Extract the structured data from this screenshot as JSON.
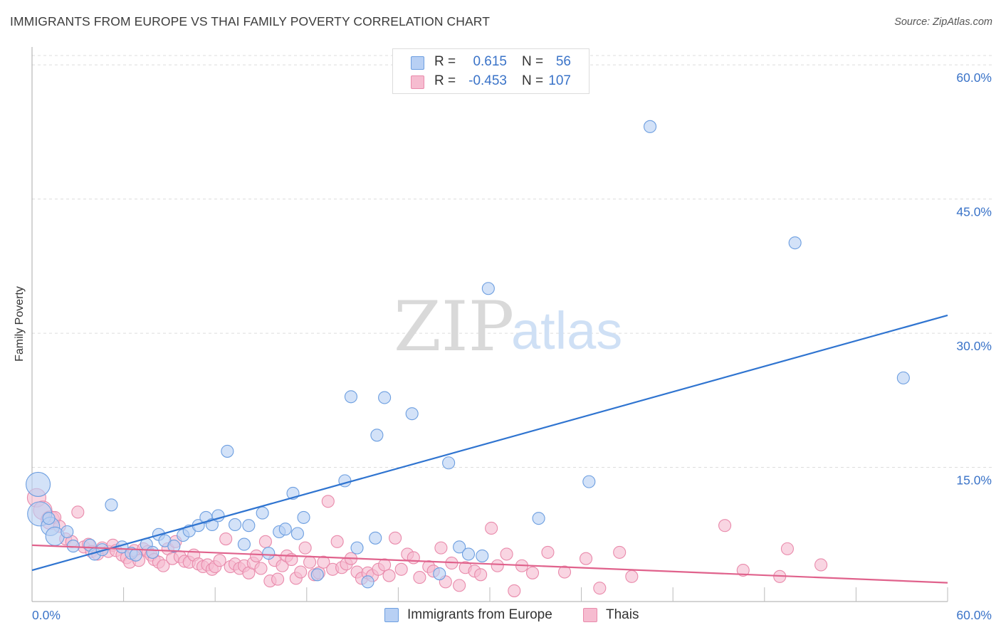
{
  "title": "IMMIGRANTS FROM EUROPE VS THAI FAMILY POVERTY CORRELATION CHART",
  "source": "Source: ZipAtlas.com",
  "watermark": {
    "zip": "ZIP",
    "atlas": "atlas"
  },
  "colors": {
    "blue_fill": "#b8d0f4",
    "blue_stroke": "#6c9ee0",
    "blue_line": "#2f74d0",
    "pink_fill": "#f6bcd0",
    "pink_stroke": "#e98aab",
    "pink_line": "#e0628c",
    "tick_label": "#3a73c8",
    "grid": "#dddddd"
  },
  "stats": [
    {
      "series": "blue",
      "r_label": "R =",
      "r_value": "0.615",
      "n_label": "N =",
      "n_value": "56"
    },
    {
      "series": "pink",
      "r_label": "R =",
      "r_value": "-0.453",
      "n_label": "N =",
      "n_value": "107"
    }
  ],
  "legend": [
    "Immigrants from Europe",
    "Thais"
  ],
  "chart_data": {
    "type": "scatter",
    "title": "IMMIGRANTS FROM EUROPE VS THAI FAMILY POVERTY CORRELATION CHART",
    "xlabel": "",
    "ylabel": "Family Poverty",
    "xlim": [
      0,
      60
    ],
    "ylim": [
      0,
      62
    ],
    "x_tick_labels": [
      "0.0%",
      "60.0%"
    ],
    "y_ticks": [
      15,
      30,
      45,
      60
    ],
    "y_tick_labels": [
      "15.0%",
      "30.0%",
      "45.0%",
      "60.0%"
    ],
    "grid": "horizontal dashed",
    "legend_position": "bottom-center",
    "series": [
      {
        "name": "Immigrants from Europe",
        "color": "#6c9ee0",
        "r": 0.615,
        "n": 56,
        "trend": [
          [
            0,
            3.5
          ],
          [
            60,
            32.0
          ]
        ],
        "points": [
          [
            0.4,
            13.1,
            3
          ],
          [
            0.5,
            9.8,
            3
          ],
          [
            1.2,
            8.4,
            2
          ],
          [
            1.5,
            7.3,
            2
          ],
          [
            2.3,
            7.8,
            1
          ],
          [
            2.7,
            6.2,
            1
          ],
          [
            3.8,
            6.3,
            1
          ],
          [
            4.1,
            5.3,
            1
          ],
          [
            4.6,
            5.8,
            1
          ],
          [
            5.2,
            10.8,
            1
          ],
          [
            5.9,
            6.1,
            1
          ],
          [
            6.5,
            5.4,
            1
          ],
          [
            6.8,
            5.2,
            1
          ],
          [
            7.5,
            6.4,
            1
          ],
          [
            7.9,
            5.5,
            1
          ],
          [
            8.3,
            7.5,
            1
          ],
          [
            8.7,
            6.8,
            1
          ],
          [
            9.3,
            6.2,
            1
          ],
          [
            9.9,
            7.4,
            1
          ],
          [
            10.3,
            7.9,
            1
          ],
          [
            10.9,
            8.5,
            1
          ],
          [
            11.4,
            9.4,
            1
          ],
          [
            11.8,
            8.6,
            1
          ],
          [
            12.2,
            9.6,
            1
          ],
          [
            12.8,
            16.8,
            1
          ],
          [
            13.3,
            8.6,
            1
          ],
          [
            13.9,
            6.4,
            1
          ],
          [
            14.2,
            8.5,
            1
          ],
          [
            15.1,
            9.9,
            1
          ],
          [
            15.5,
            5.4,
            1
          ],
          [
            16.2,
            7.8,
            1
          ],
          [
            16.6,
            8.1,
            1
          ],
          [
            17.1,
            12.1,
            1
          ],
          [
            17.4,
            7.6,
            1
          ],
          [
            17.8,
            9.4,
            1
          ],
          [
            18.7,
            3.0,
            1
          ],
          [
            20.5,
            13.5,
            1
          ],
          [
            20.9,
            22.9,
            1
          ],
          [
            21.3,
            6.0,
            1
          ],
          [
            22.0,
            2.2,
            1
          ],
          [
            22.5,
            7.1,
            1
          ],
          [
            22.6,
            18.6,
            1
          ],
          [
            23.1,
            22.8,
            1
          ],
          [
            24.9,
            21.0,
            1
          ],
          [
            26.7,
            3.1,
            1
          ],
          [
            27.3,
            15.5,
            1
          ],
          [
            28.0,
            6.1,
            1
          ],
          [
            28.6,
            5.3,
            1
          ],
          [
            29.5,
            5.1,
            1
          ],
          [
            29.9,
            35.0,
            1
          ],
          [
            33.2,
            9.3,
            1
          ],
          [
            36.5,
            13.4,
            1
          ],
          [
            40.5,
            53.1,
            1
          ],
          [
            50.0,
            40.1,
            1
          ],
          [
            57.1,
            25.0,
            1
          ],
          [
            1.1,
            9.3,
            1
          ]
        ]
      },
      {
        "name": "Thais",
        "color": "#e98aab",
        "r": -0.453,
        "n": 107,
        "trend": [
          [
            0,
            6.3
          ],
          [
            60,
            2.1
          ]
        ],
        "points": [
          [
            0.3,
            11.6,
            2
          ],
          [
            0.7,
            10.2,
            2
          ],
          [
            1.2,
            9.1,
            2
          ],
          [
            1.5,
            9.4,
            1
          ],
          [
            1.8,
            8.4,
            1
          ],
          [
            2.2,
            7.0,
            1
          ],
          [
            2.6,
            6.7,
            1
          ],
          [
            3.0,
            10.0,
            1
          ],
          [
            3.4,
            6.1,
            1
          ],
          [
            3.7,
            6.4,
            1
          ],
          [
            3.9,
            5.6,
            1
          ],
          [
            4.3,
            5.3,
            1
          ],
          [
            4.6,
            6.0,
            1
          ],
          [
            5.0,
            5.6,
            1
          ],
          [
            5.3,
            6.3,
            1
          ],
          [
            5.5,
            5.7,
            1
          ],
          [
            5.9,
            5.2,
            1
          ],
          [
            6.2,
            4.9,
            1
          ],
          [
            6.4,
            4.4,
            1
          ],
          [
            6.7,
            5.7,
            1
          ],
          [
            7.0,
            4.6,
            1
          ],
          [
            7.3,
            5.9,
            1
          ],
          [
            7.6,
            5.6,
            1
          ],
          [
            7.8,
            5.2,
            1
          ],
          [
            8.0,
            4.7,
            1
          ],
          [
            8.3,
            4.4,
            1
          ],
          [
            8.6,
            4.0,
            1
          ],
          [
            8.9,
            5.9,
            1
          ],
          [
            9.2,
            4.8,
            1
          ],
          [
            9.4,
            6.7,
            1
          ],
          [
            9.7,
            5.0,
            1
          ],
          [
            10.0,
            4.5,
            1
          ],
          [
            10.3,
            4.4,
            1
          ],
          [
            10.6,
            5.2,
            1
          ],
          [
            10.9,
            4.2,
            1
          ],
          [
            11.2,
            3.9,
            1
          ],
          [
            11.5,
            4.1,
            1
          ],
          [
            11.8,
            3.6,
            1
          ],
          [
            12.0,
            3.9,
            1
          ],
          [
            12.3,
            4.6,
            1
          ],
          [
            12.7,
            7.0,
            1
          ],
          [
            13.0,
            3.9,
            1
          ],
          [
            13.3,
            4.2,
            1
          ],
          [
            13.6,
            3.7,
            1
          ],
          [
            13.9,
            4.0,
            1
          ],
          [
            14.2,
            3.2,
            1
          ],
          [
            14.5,
            4.3,
            1
          ],
          [
            14.7,
            5.1,
            1
          ],
          [
            15.0,
            3.7,
            1
          ],
          [
            15.3,
            6.7,
            1
          ],
          [
            15.6,
            2.3,
            1
          ],
          [
            15.9,
            4.6,
            1
          ],
          [
            16.1,
            2.5,
            1
          ],
          [
            16.4,
            4.0,
            1
          ],
          [
            16.7,
            5.1,
            1
          ],
          [
            17.0,
            4.7,
            1
          ],
          [
            17.3,
            2.6,
            1
          ],
          [
            17.6,
            3.3,
            1
          ],
          [
            17.9,
            6.0,
            1
          ],
          [
            18.2,
            4.4,
            1
          ],
          [
            18.5,
            3.0,
            1
          ],
          [
            18.8,
            3.2,
            1
          ],
          [
            19.1,
            4.4,
            1
          ],
          [
            19.4,
            11.2,
            1
          ],
          [
            19.7,
            3.6,
            1
          ],
          [
            20.0,
            6.7,
            1
          ],
          [
            20.3,
            3.8,
            1
          ],
          [
            20.6,
            4.2,
            1
          ],
          [
            20.9,
            4.8,
            1
          ],
          [
            21.3,
            3.3,
            1
          ],
          [
            21.6,
            2.6,
            1
          ],
          [
            22.0,
            3.2,
            1
          ],
          [
            22.3,
            2.9,
            1
          ],
          [
            22.7,
            3.6,
            1
          ],
          [
            23.1,
            4.1,
            1
          ],
          [
            23.4,
            2.9,
            1
          ],
          [
            23.8,
            7.1,
            1
          ],
          [
            24.2,
            3.6,
            1
          ],
          [
            24.6,
            5.3,
            1
          ],
          [
            25.0,
            4.9,
            1
          ],
          [
            25.4,
            2.7,
            1
          ],
          [
            26.0,
            3.9,
            1
          ],
          [
            26.3,
            3.4,
            1
          ],
          [
            26.8,
            6.0,
            1
          ],
          [
            27.1,
            2.2,
            1
          ],
          [
            27.5,
            4.3,
            1
          ],
          [
            28.0,
            1.8,
            1
          ],
          [
            28.4,
            3.8,
            1
          ],
          [
            29.0,
            3.4,
            1
          ],
          [
            29.4,
            3.0,
            1
          ],
          [
            30.1,
            8.2,
            1
          ],
          [
            30.5,
            4.0,
            1
          ],
          [
            31.1,
            5.3,
            1
          ],
          [
            31.6,
            1.2,
            1
          ],
          [
            32.1,
            4.0,
            1
          ],
          [
            32.8,
            3.2,
            1
          ],
          [
            33.8,
            5.5,
            1
          ],
          [
            34.9,
            3.3,
            1
          ],
          [
            36.3,
            4.8,
            1
          ],
          [
            37.2,
            1.5,
            1
          ],
          [
            38.5,
            5.5,
            1
          ],
          [
            39.3,
            2.8,
            1
          ],
          [
            45.4,
            8.5,
            1
          ],
          [
            46.6,
            3.5,
            1
          ],
          [
            49.0,
            2.8,
            1
          ],
          [
            49.5,
            5.9,
            1
          ],
          [
            51.7,
            4.1,
            1
          ]
        ]
      }
    ]
  }
}
